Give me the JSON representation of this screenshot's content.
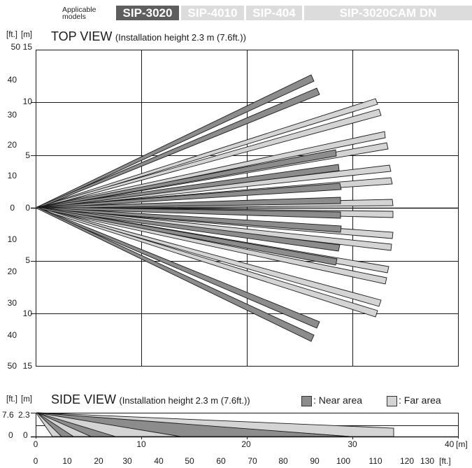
{
  "header": {
    "applicable_line1": "Applicable",
    "applicable_line2": "models",
    "models": [
      {
        "label": "SIP-3020",
        "active": true
      },
      {
        "label": "SIP-4010",
        "active": false
      },
      {
        "label": "SIP-404",
        "active": false
      },
      {
        "label": "SIP-3020CAM DN",
        "active": false
      }
    ]
  },
  "top_view": {
    "title": "TOP VIEW",
    "subtitle": "(Installation height 2.3 m (7.6ft.))",
    "unit_ft": "[ft.]",
    "unit_m": "[m]",
    "y_ticks_ft": [
      "50",
      "40",
      "30",
      "20",
      "10",
      "0",
      "10",
      "20",
      "30",
      "40",
      "50"
    ],
    "y_ticks_m": [
      "15",
      "10",
      "5",
      "0",
      "5",
      "10",
      "15"
    ]
  },
  "side_view": {
    "title": "SIDE VIEW",
    "subtitle": "(Installation height 2.3 m (7.6ft.))",
    "unit_ft": "[ft.]",
    "unit_m": "[m]",
    "y_tick_ft_top": "7.6",
    "y_tick_m_top": "2.3",
    "y_tick_ft_bottom": "0",
    "y_tick_m_bottom": "0",
    "legend_near": ": Near area",
    "legend_far": ": Far area"
  },
  "x_axis": {
    "m_ticks": [
      "0",
      "10",
      "20",
      "30",
      "40"
    ],
    "m_unit": "[m]",
    "ft_ticks": [
      "0",
      "10",
      "20",
      "30",
      "40",
      "50",
      "60",
      "70",
      "80",
      "90",
      "100",
      "110",
      "120",
      "130"
    ],
    "ft_unit": "[ft.]"
  },
  "colors": {
    "near": "#8c8c8c",
    "far": "#d4d4d4",
    "model_active": "#5e5e5e",
    "model_inactive": "#dcdcdc",
    "grid": "#1a1a1a"
  }
}
